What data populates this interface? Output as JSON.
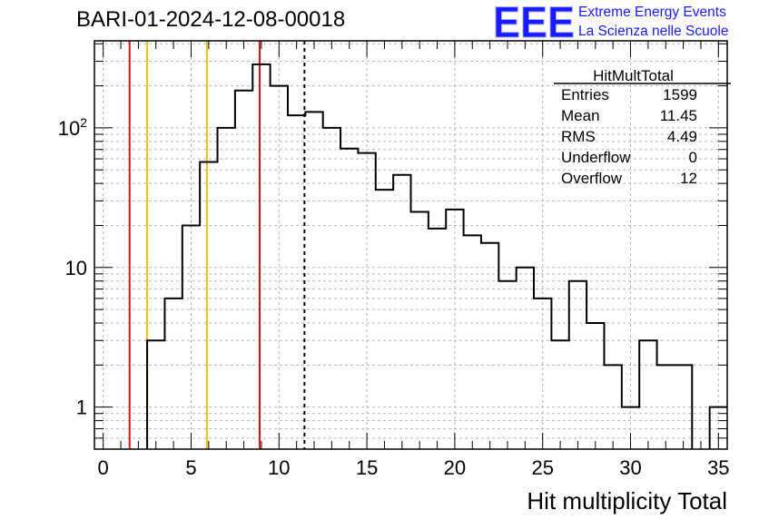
{
  "header": {
    "title": "BARI-01-2024-12-08-00018",
    "logo_text": "EEE",
    "org_line1": "Extreme Energy Events",
    "org_line2": "La Scienza nelle Scuole"
  },
  "stats": {
    "name": "HitMultTotal",
    "rows": [
      {
        "label": "Entries",
        "value": "1599"
      },
      {
        "label": "Mean",
        "value": "11.45"
      },
      {
        "label": "RMS",
        "value": "4.49"
      },
      {
        "label": "Underflow",
        "value": "0"
      },
      {
        "label": "Overflow",
        "value": "12"
      }
    ]
  },
  "chart_data": {
    "type": "histogram",
    "title": "BARI-01-2024-12-08-00018",
    "xlabel": "Hit multiplicity Total",
    "ylabel": "",
    "xlim": [
      -0.5,
      35.5
    ],
    "ylim": [
      0.5,
      420
    ],
    "ylog": true,
    "grid": true,
    "legend": "top-right",
    "bin_width": 1,
    "bin_low_edges": [
      -0.5,
      0.5,
      1.5,
      2.5,
      3.5,
      4.5,
      5.5,
      6.5,
      7.5,
      8.5,
      9.5,
      10.5,
      11.5,
      12.5,
      13.5,
      14.5,
      15.5,
      16.5,
      17.5,
      18.5,
      19.5,
      20.5,
      21.5,
      22.5,
      23.5,
      24.5,
      25.5,
      26.5,
      27.5,
      28.5,
      29.5,
      30.5,
      31.5,
      32.5,
      33.5,
      34.5
    ],
    "counts": [
      0,
      0,
      0,
      3,
      6,
      20,
      57,
      100,
      185,
      285,
      200,
      123,
      130,
      100,
      71,
      66,
      36,
      46,
      25,
      19,
      26,
      17,
      15,
      8,
      10,
      6,
      3,
      8,
      4,
      2,
      1,
      3,
      2,
      2,
      0,
      1
    ],
    "x_ticks": [
      "0",
      "5",
      "10",
      "15",
      "20",
      "25",
      "30",
      "35"
    ],
    "y_ticks": [
      "1",
      "10",
      "10^2"
    ],
    "vertical_lines": [
      {
        "x": 1.5,
        "color": "#e01010",
        "style": "solid"
      },
      {
        "x": 2.5,
        "color": "#f0c000",
        "style": "solid"
      },
      {
        "x": 5.9,
        "color": "#f0c000",
        "style": "solid"
      },
      {
        "x": 8.9,
        "color": "#e01010",
        "style": "solid"
      },
      {
        "x": 11.45,
        "color": "#000000",
        "style": "dashed"
      }
    ]
  },
  "colors": {
    "logo": "#1a1aff",
    "histogram": "#000000",
    "grid": "#b8b8b8"
  }
}
